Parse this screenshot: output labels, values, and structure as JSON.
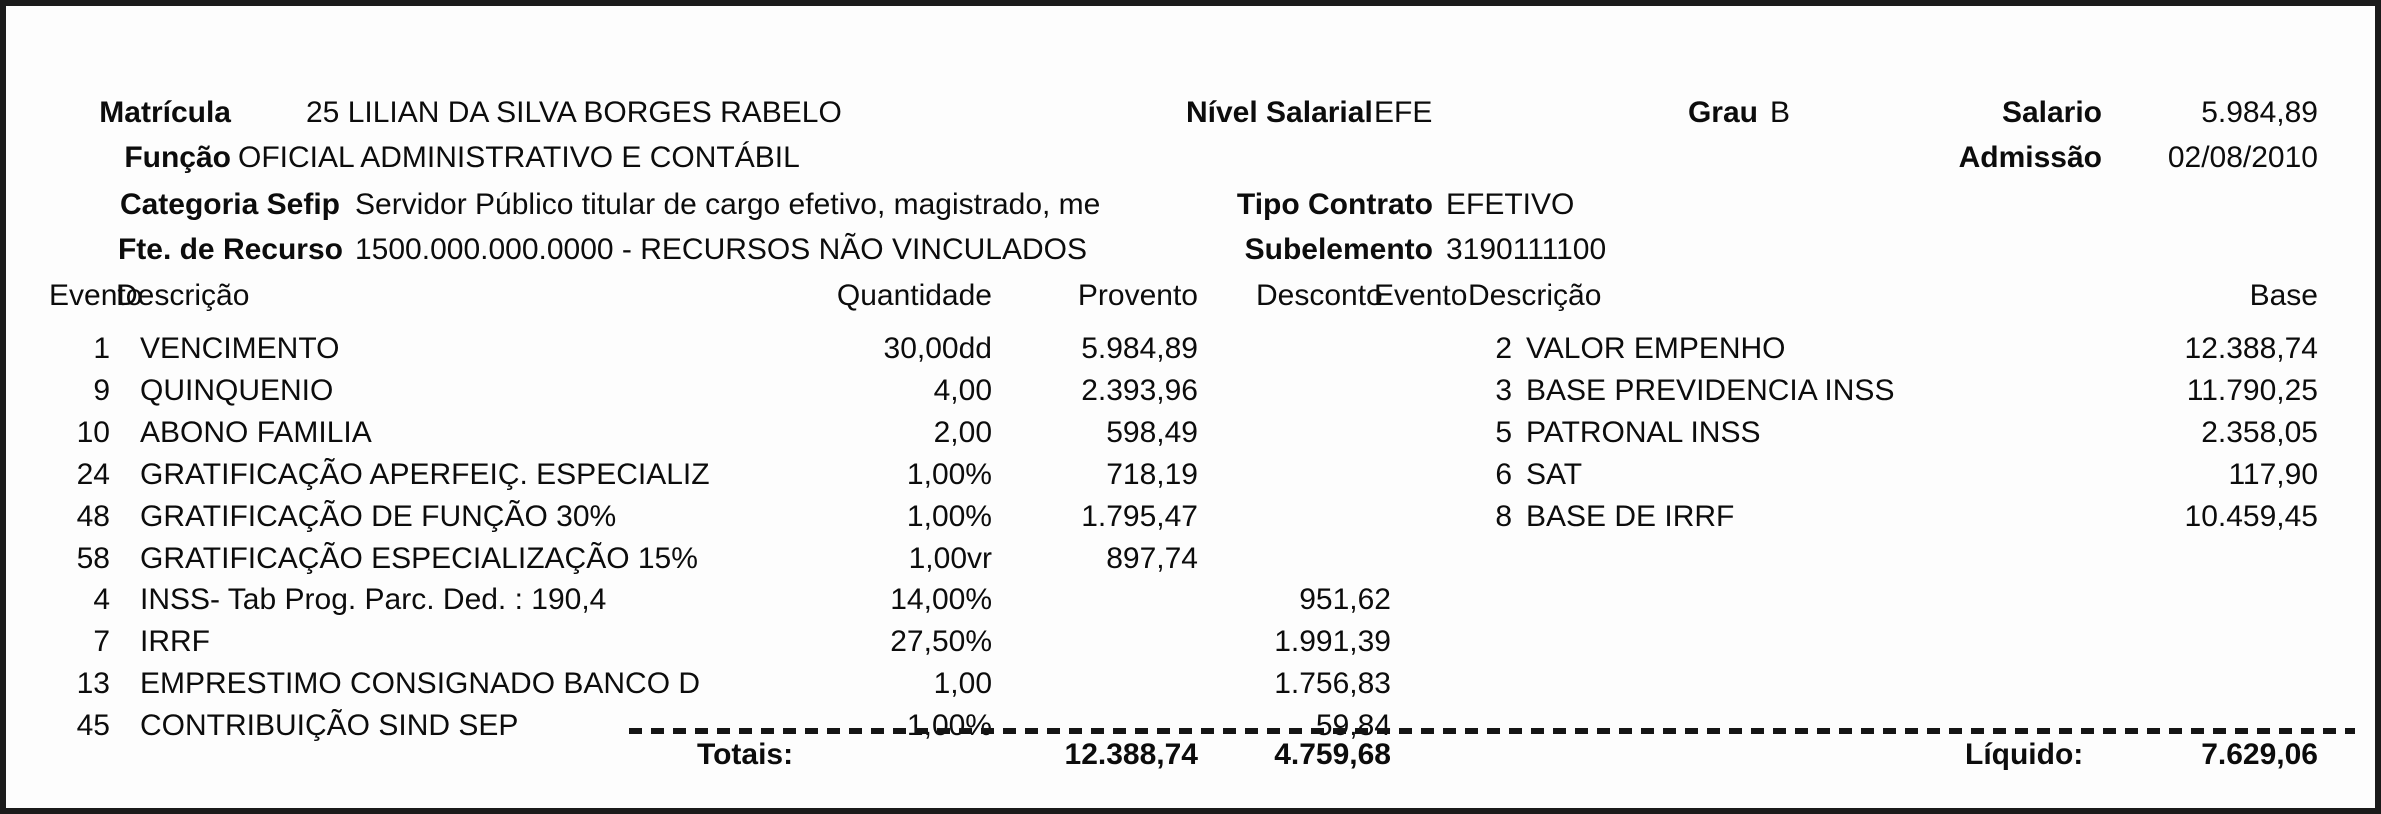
{
  "document": {
    "matricula_label": "Matrícula",
    "matricula_value": "25 LILIAN DA SILVA BORGES RABELO",
    "nivel_salarial_label": "Nível Salarial",
    "nivel_salarial_value": "EFE",
    "grau_label": "Grau",
    "grau_value": "B",
    "salario_label": "Salario",
    "salario_value": "5.984,89",
    "funcao_label": "Função",
    "funcao_value": "OFICIAL ADMINISTRATIVO E CONTÁBIL",
    "admissao_label": "Admissão",
    "admissao_value": "02/08/2010",
    "categoria_sefip_label": "Categoria Sefip",
    "categoria_sefip_value": "Servidor Público titular de cargo efetivo, magistrado, me",
    "tipo_contrato_label": "Tipo Contrato",
    "tipo_contrato_value": "EFETIVO",
    "fte_recurso_label": "Fte. de Recurso",
    "fte_recurso_value": "1500.000.000.0000 - RECURSOS NÃO VINCULADOS",
    "subelemento_label": "Subelemento",
    "subelemento_value": "3190111100"
  },
  "table": {
    "headers": {
      "evento": "Evento",
      "descricao": "Descrição",
      "quantidade": "Quantidade",
      "provento": "Provento",
      "desconto": "Desconto",
      "evento_right": "Evento",
      "descricao_right": "Descrição",
      "base": "Base"
    },
    "left_rows": [
      {
        "evento": "1",
        "descricao": "VENCIMENTO",
        "quantidade": "30,00dd",
        "provento": "5.984,89",
        "desconto": ""
      },
      {
        "evento": "9",
        "descricao": "QUINQUENIO",
        "quantidade": "4,00",
        "provento": "2.393,96",
        "desconto": ""
      },
      {
        "evento": "10",
        "descricao": "ABONO FAMILIA",
        "quantidade": "2,00",
        "provento": "598,49",
        "desconto": ""
      },
      {
        "evento": "24",
        "descricao": "GRATIFICAÇÃO APERFEIÇ. ESPECIALIZ",
        "quantidade": "1,00%",
        "provento": "718,19",
        "desconto": ""
      },
      {
        "evento": "48",
        "descricao": "GRATIFICAÇÃO DE FUNÇÃO 30%",
        "quantidade": "1,00%",
        "provento": "1.795,47",
        "desconto": ""
      },
      {
        "evento": "58",
        "descricao": "GRATIFICAÇÃO ESPECIALIZAÇÃO 15%",
        "quantidade": "1,00vr",
        "provento": "897,74",
        "desconto": ""
      },
      {
        "evento": "4",
        "descricao": "INSS- Tab Prog. Parc. Ded. : 190,4",
        "quantidade": "14,00%",
        "provento": "",
        "desconto": "951,62"
      },
      {
        "evento": "7",
        "descricao": "IRRF",
        "quantidade": "27,50%",
        "provento": "",
        "desconto": "1.991,39"
      },
      {
        "evento": "13",
        "descricao": "EMPRESTIMO CONSIGNADO BANCO D",
        "quantidade": "1,00",
        "provento": "",
        "desconto": "1.756,83"
      },
      {
        "evento": "45",
        "descricao": "CONTRIBUIÇÃO SIND SEP",
        "quantidade": "1,00%",
        "provento": "",
        "desconto": "59,84"
      }
    ],
    "right_rows": [
      {
        "evento": "2",
        "descricao": "VALOR EMPENHO",
        "base": "12.388,74"
      },
      {
        "evento": "3",
        "descricao": "BASE PREVIDENCIA INSS",
        "base": "11.790,25"
      },
      {
        "evento": "5",
        "descricao": "PATRONAL INSS",
        "base": "2.358,05"
      },
      {
        "evento": "6",
        "descricao": "SAT",
        "base": "117,90"
      },
      {
        "evento": "8",
        "descricao": "BASE DE IRRF",
        "base": "10.459,45"
      }
    ],
    "totals": {
      "label": "Totais:",
      "provento_total": "12.388,74",
      "desconto_total": "4.759,68",
      "liquido_label": "Líquido:",
      "liquido_value": "7.629,06"
    }
  }
}
